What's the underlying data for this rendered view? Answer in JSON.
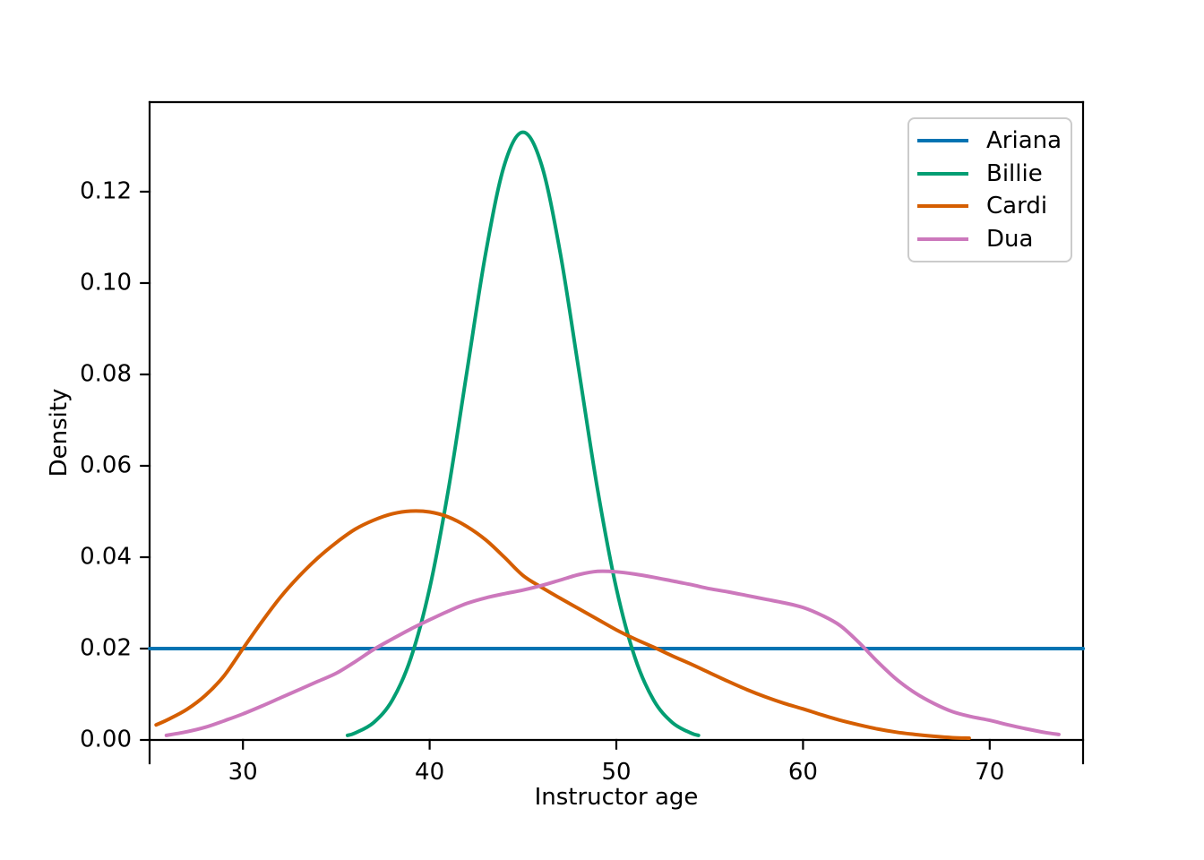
{
  "figure": {
    "background": "#ffffff",
    "spine_color": "#000000",
    "text_color": "#000000"
  },
  "chart_data": {
    "type": "line",
    "title": "",
    "xlabel": "Instructor age",
    "ylabel": "Density",
    "xlim": [
      25,
      75
    ],
    "ylim": [
      -0.0051,
      0.1396
    ],
    "grid": false,
    "legend": {
      "position": "upper right",
      "frame": true
    },
    "xticks": {
      "values": [
        30,
        40,
        50,
        60,
        70
      ],
      "labels": [
        "30",
        "40",
        "50",
        "60",
        "70"
      ]
    },
    "yticks": {
      "values": [
        0.0,
        0.02,
        0.04,
        0.06,
        0.08,
        0.1,
        0.12
      ],
      "labels": [
        "0.00",
        "0.02",
        "0.04",
        "0.06",
        "0.08",
        "0.10",
        "0.12"
      ]
    },
    "series": [
      {
        "name": "Ariana",
        "color": "#0173b2",
        "points": [
          [
            25,
            0.02
          ],
          [
            75,
            0.02
          ]
        ]
      },
      {
        "name": "Billie",
        "color": "#029e73",
        "points": [
          [
            35.6,
            0.001
          ],
          [
            36,
            0.0015
          ],
          [
            37,
            0.0038
          ],
          [
            38,
            0.0087
          ],
          [
            39,
            0.018
          ],
          [
            40,
            0.0332
          ],
          [
            41,
            0.0547
          ],
          [
            42,
            0.0807
          ],
          [
            43,
            0.1065
          ],
          [
            44,
            0.1258
          ],
          [
            45,
            0.133
          ],
          [
            46,
            0.1258
          ],
          [
            47,
            0.1065
          ],
          [
            48,
            0.0807
          ],
          [
            49,
            0.0547
          ],
          [
            50,
            0.0332
          ],
          [
            51,
            0.018
          ],
          [
            52,
            0.0087
          ],
          [
            53,
            0.0038
          ],
          [
            54,
            0.0015
          ],
          [
            54.4,
            0.001
          ]
        ]
      },
      {
        "name": "Cardi",
        "color": "#d55e00",
        "points": [
          [
            25.35,
            0.0033
          ],
          [
            26,
            0.0045
          ],
          [
            27,
            0.0067
          ],
          [
            28,
            0.0098
          ],
          [
            29,
            0.0141
          ],
          [
            30,
            0.02
          ],
          [
            31,
            0.0258
          ],
          [
            32,
            0.0312
          ],
          [
            33,
            0.0358
          ],
          [
            34,
            0.0398
          ],
          [
            35,
            0.0432
          ],
          [
            36,
            0.0461
          ],
          [
            37,
            0.0481
          ],
          [
            38,
            0.0495
          ],
          [
            39,
            0.0501
          ],
          [
            40,
            0.0499
          ],
          [
            41,
            0.0488
          ],
          [
            42,
            0.0467
          ],
          [
            43,
            0.0438
          ],
          [
            44,
            0.04
          ],
          [
            45,
            0.036
          ],
          [
            46,
            0.0334
          ],
          [
            47,
            0.031
          ],
          [
            48,
            0.0287
          ],
          [
            49,
            0.0264
          ],
          [
            50,
            0.0241
          ],
          [
            51,
            0.0221
          ],
          [
            52,
            0.0203
          ],
          [
            53,
            0.0184
          ],
          [
            54,
            0.0166
          ],
          [
            55,
            0.0147
          ],
          [
            56,
            0.0128
          ],
          [
            57,
            0.011
          ],
          [
            58,
            0.0094
          ],
          [
            59,
            0.008
          ],
          [
            60,
            0.0068
          ],
          [
            61,
            0.0055
          ],
          [
            62,
            0.0043
          ],
          [
            63,
            0.0033
          ],
          [
            64,
            0.0024
          ],
          [
            65,
            0.0017
          ],
          [
            66,
            0.0012
          ],
          [
            67,
            0.0008
          ],
          [
            68,
            0.0005
          ],
          [
            68.9,
            0.0004
          ]
        ]
      },
      {
        "name": "Dua",
        "color": "#cc78bc",
        "points": [
          [
            25.9,
            0.001
          ],
          [
            27,
            0.0018
          ],
          [
            28,
            0.0028
          ],
          [
            29,
            0.0042
          ],
          [
            30,
            0.0057
          ],
          [
            31,
            0.0074
          ],
          [
            32,
            0.0092
          ],
          [
            33,
            0.011
          ],
          [
            34,
            0.0128
          ],
          [
            35,
            0.0146
          ],
          [
            36,
            0.0171
          ],
          [
            37,
            0.0198
          ],
          [
            38,
            0.0221
          ],
          [
            39,
            0.0243
          ],
          [
            40,
            0.0263
          ],
          [
            41,
            0.0282
          ],
          [
            42,
            0.0299
          ],
          [
            43,
            0.0311
          ],
          [
            44,
            0.032
          ],
          [
            45,
            0.0328
          ],
          [
            46,
            0.0338
          ],
          [
            47,
            0.035
          ],
          [
            48,
            0.0362
          ],
          [
            49,
            0.0369
          ],
          [
            50,
            0.0368
          ],
          [
            51,
            0.0363
          ],
          [
            52,
            0.0356
          ],
          [
            53,
            0.0348
          ],
          [
            54,
            0.034
          ],
          [
            55,
            0.0331
          ],
          [
            56,
            0.0324
          ],
          [
            57,
            0.0316
          ],
          [
            58,
            0.0308
          ],
          [
            59,
            0.03
          ],
          [
            60,
            0.029
          ],
          [
            61,
            0.0273
          ],
          [
            62,
            0.025
          ],
          [
            63,
            0.0213
          ],
          [
            64,
            0.0171
          ],
          [
            65,
            0.0133
          ],
          [
            66,
            0.0103
          ],
          [
            67,
            0.008
          ],
          [
            68,
            0.0062
          ],
          [
            69,
            0.0051
          ],
          [
            70,
            0.0043
          ],
          [
            71,
            0.0033
          ],
          [
            72,
            0.0024
          ],
          [
            73,
            0.0016
          ],
          [
            73.7,
            0.0012
          ]
        ]
      }
    ]
  }
}
